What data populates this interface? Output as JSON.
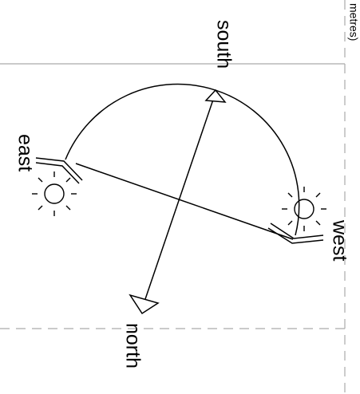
{
  "labels": {
    "south": "south",
    "east": "east",
    "west": "west",
    "north": "north",
    "scale_note": "metres)"
  }
}
